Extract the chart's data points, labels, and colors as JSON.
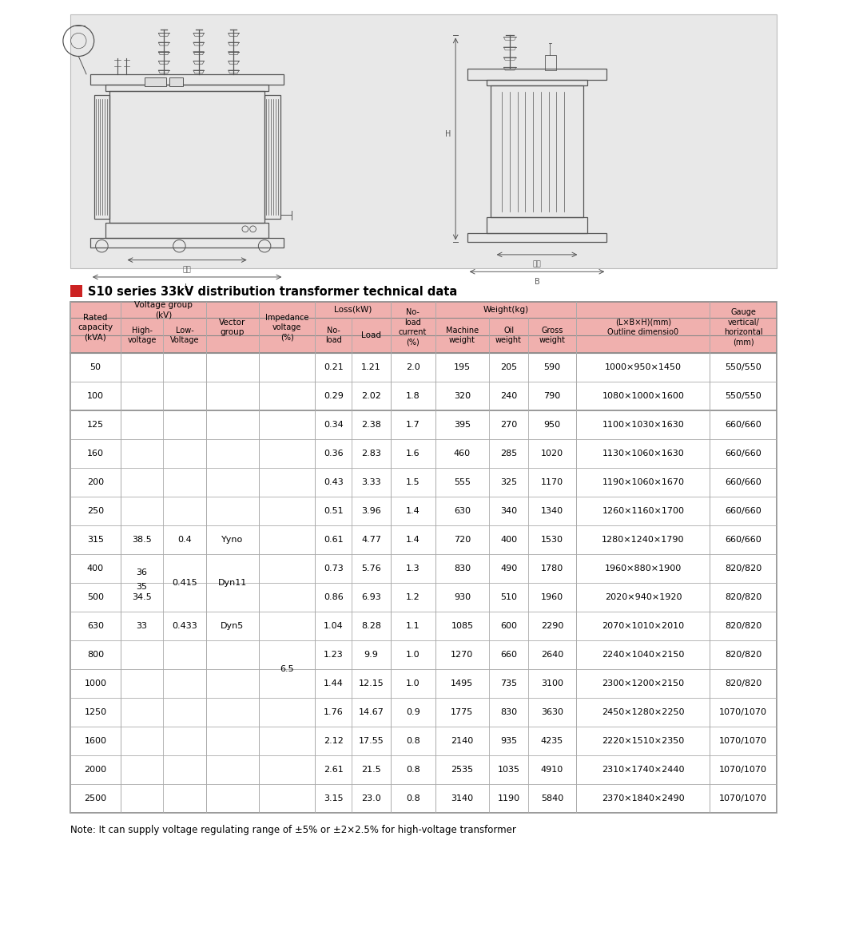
{
  "title": "S10 series 33kV distribution transformer technical data",
  "note": "Note: It can supply voltage regulating range of ±5% or ±2×2.5% for high-voltage transformer",
  "header_bg": "#f0b0ae",
  "table_border": "#888888",
  "col_border": "#aaaaaa",
  "diagram_bg": "#e8e8e8",
  "rows": [
    [
      "50",
      "",
      "",
      "",
      "",
      "0.21",
      "1.21",
      "2.0",
      "195",
      "205",
      "590",
      "1000×950×1450",
      "550/550"
    ],
    [
      "100",
      "",
      "",
      "",
      "",
      "0.29",
      "2.02",
      "1.8",
      "320",
      "240",
      "790",
      "1080×1000×1600",
      "550/550"
    ],
    [
      "125",
      "",
      "",
      "",
      "",
      "0.34",
      "2.38",
      "1.7",
      "395",
      "270",
      "950",
      "1100×1030×1630",
      "660/660"
    ],
    [
      "160",
      "",
      "",
      "",
      "",
      "0.36",
      "2.83",
      "1.6",
      "460",
      "285",
      "1020",
      "1130×1060×1630",
      "660/660"
    ],
    [
      "200",
      "",
      "",
      "",
      "",
      "0.43",
      "3.33",
      "1.5",
      "555",
      "325",
      "1170",
      "1190×1060×1670",
      "660/660"
    ],
    [
      "250",
      "",
      "",
      "",
      "",
      "0.51",
      "3.96",
      "1.4",
      "630",
      "340",
      "1340",
      "1260×1160×1700",
      "660/660"
    ],
    [
      "315",
      "38.5",
      "0.4",
      "Yyno",
      "",
      "0.61",
      "4.77",
      "1.4",
      "720",
      "400",
      "1530",
      "1280×1240×1790",
      "660/660"
    ],
    [
      "400",
      "36_35",
      "0.415",
      "Dyn11",
      "6.5",
      "0.73",
      "5.76",
      "1.3",
      "830",
      "490",
      "1780",
      "1960×880×1900",
      "820/820"
    ],
    [
      "500",
      "34.5",
      "",
      "",
      "",
      "0.86",
      "6.93",
      "1.2",
      "930",
      "510",
      "1960",
      "2020×940×1920",
      "820/820"
    ],
    [
      "630",
      "33",
      "0.433",
      "Dyn5",
      "",
      "1.04",
      "8.28",
      "1.1",
      "1085",
      "600",
      "2290",
      "2070×1010×2010",
      "820/820"
    ],
    [
      "800",
      "",
      "",
      "",
      "",
      "1.23",
      "9.9",
      "1.0",
      "1270",
      "660",
      "2640",
      "2240×1040×2150",
      "820/820"
    ],
    [
      "1000",
      "",
      "",
      "",
      "",
      "1.44",
      "12.15",
      "1.0",
      "1495",
      "735",
      "3100",
      "2300×1200×2150",
      "820/820"
    ],
    [
      "1250",
      "",
      "",
      "",
      "",
      "1.76",
      "14.67",
      "0.9",
      "1775",
      "830",
      "3630",
      "2450×1280×2250",
      "1070/1070"
    ],
    [
      "1600",
      "",
      "",
      "",
      "",
      "2.12",
      "17.55",
      "0.8",
      "2140",
      "935",
      "4235",
      "2220×1510×2350",
      "1070/1070"
    ],
    [
      "2000",
      "",
      "",
      "",
      "",
      "2.61",
      "21.5",
      "0.8",
      "2535",
      "1035",
      "4910",
      "2310×1740×2440",
      "1070/1070"
    ],
    [
      "2500",
      "",
      "",
      "",
      "",
      "3.15",
      "23.0",
      "0.8",
      "3140",
      "1190",
      "5840",
      "2370×1840×2490",
      "1070/1070"
    ]
  ]
}
